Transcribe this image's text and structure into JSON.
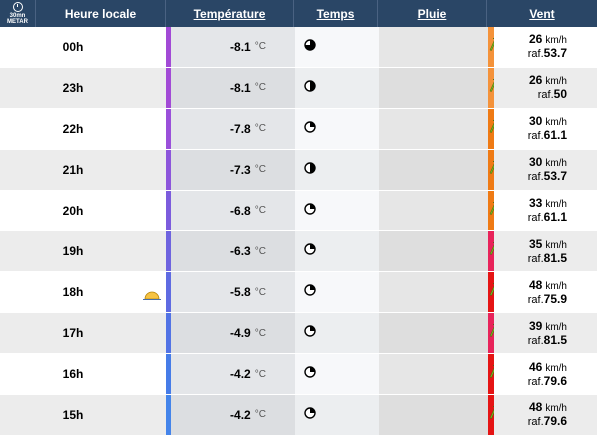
{
  "header": {
    "interval_top": "30mn",
    "interval_bottom": "METAR",
    "hour_label": "Heure locale",
    "temp_label": "Température",
    "weather_label": "Temps",
    "rain_label": "Pluie",
    "wind_label": "Vent"
  },
  "units": {
    "temp": "°C",
    "wind": "km/h",
    "gust_prefix": "raf."
  },
  "rows": [
    {
      "hour": "00h",
      "temp": "-8.1",
      "wind": "26",
      "gust": "53.7",
      "moon": "three-quarter",
      "temp_color": "#a24ad6",
      "wind_color": "#f4923a"
    },
    {
      "hour": "23h",
      "temp": "-8.1",
      "wind": "26",
      "gust": "50",
      "moon": "half",
      "temp_color": "#a24ad6",
      "wind_color": "#f4923a"
    },
    {
      "hour": "22h",
      "temp": "-7.8",
      "wind": "30",
      "gust": "61.1",
      "moon": "quarter",
      "temp_color": "#9a50da",
      "wind_color": "#ef7a14"
    },
    {
      "hour": "21h",
      "temp": "-7.3",
      "wind": "30",
      "gust": "53.7",
      "moon": "half",
      "temp_color": "#8c55db",
      "wind_color": "#ef7a14"
    },
    {
      "hour": "20h",
      "temp": "-6.8",
      "wind": "33",
      "gust": "61.1",
      "moon": "quarter",
      "temp_color": "#7c5cdd",
      "wind_color": "#ef7a14"
    },
    {
      "hour": "19h",
      "temp": "-6.3",
      "wind": "35",
      "gust": "81.5",
      "moon": "quarter",
      "temp_color": "#6e63df",
      "wind_color": "#e8235a"
    },
    {
      "hour": "18h",
      "temp": "-5.8",
      "wind": "48",
      "gust": "75.9",
      "moon": "quarter",
      "temp_color": "#5f6be2",
      "wind_color": "#e51414"
    },
    {
      "hour": "17h",
      "temp": "-4.9",
      "wind": "39",
      "gust": "81.5",
      "moon": "quarter",
      "temp_color": "#5273e5",
      "wind_color": "#e8235a"
    },
    {
      "hour": "16h",
      "temp": "-4.2",
      "wind": "46",
      "gust": "79.6",
      "moon": "quarter",
      "temp_color": "#467ce8",
      "wind_color": "#e51414"
    },
    {
      "hour": "15h",
      "temp": "-4.2",
      "wind": "48",
      "gust": "79.6",
      "moon": "quarter",
      "temp_color": "#4484ea",
      "wind_color": "#e51414"
    }
  ],
  "colors": {
    "header_bg": "#2a4666",
    "arrow": "#7ab51d"
  },
  "icons": {
    "interval": "clock-icon",
    "sunset": "sunset-icon",
    "wind_direction": "wind-arrow-icon"
  }
}
